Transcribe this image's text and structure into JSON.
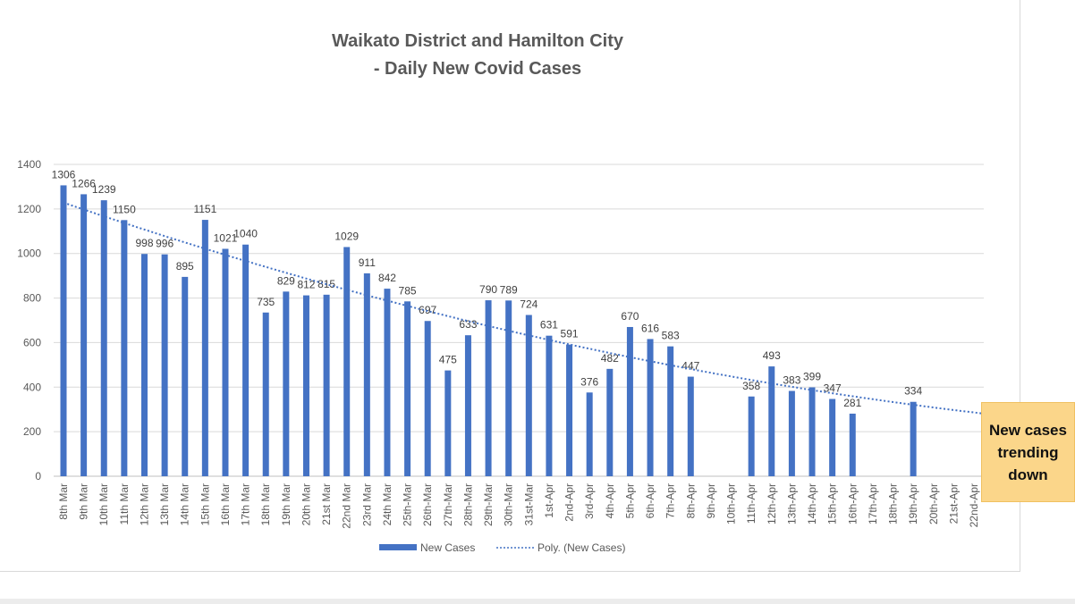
{
  "chart_data": {
    "type": "bar",
    "title": [
      "Waikato District and Hamilton City",
      "- Daily New Covid Cases"
    ],
    "xlabel": "",
    "ylabel": "",
    "ylim": [
      0,
      1400
    ],
    "yticks": [
      0,
      200,
      400,
      600,
      800,
      1000,
      1200,
      1400
    ],
    "grid": true,
    "legend_position": "bottom",
    "categories": [
      "8th Mar",
      "9th Mar",
      "10th Mar",
      "11th Mar",
      "12th Mar",
      "13th Mar",
      "14th Mar",
      "15th Mar",
      "16th Mar",
      "17th Mar",
      "18th Mar",
      "19th Mar",
      "20th Mar",
      "21st Mar",
      "22nd Mar",
      "23rd Mar",
      "24th Mar",
      "25th-Mar",
      "26th-Mar",
      "27th-Mar",
      "28th-Mar",
      "29th-Mar",
      "30th-Mar",
      "31st-Mar",
      "1st-Apr",
      "2nd-Apr",
      "3rd-Apr",
      "4th-Apr",
      "5th-Apr",
      "6th-Apr",
      "7th-Apr",
      "8th-Apr",
      "9th-Apr",
      "10th-Apr",
      "11th-Apr",
      "12th-Apr",
      "13th-Apr",
      "14th-Apr",
      "15th-Apr",
      "16th-Apr",
      "17th-Apr",
      "18th-Apr",
      "19th-Apr",
      "20th-Apr",
      "21st-Apr",
      "22nd-Apr"
    ],
    "series": [
      {
        "name": "New Cases",
        "color": "#4472c4",
        "values": [
          1306,
          1266,
          1239,
          1150,
          998,
          996,
          895,
          1151,
          1021,
          1040,
          735,
          829,
          812,
          815,
          1029,
          911,
          842,
          785,
          697,
          475,
          633,
          790,
          789,
          724,
          631,
          591,
          376,
          482,
          670,
          616,
          583,
          447,
          null,
          null,
          358,
          493,
          383,
          399,
          347,
          281,
          null,
          null,
          334,
          null,
          null,
          null
        ]
      }
    ],
    "trendline": {
      "name": "Poly. (New Cases)",
      "type": "polynomial",
      "order": 2,
      "color": "#4472c4"
    }
  },
  "callout": {
    "text": "New cases trending down",
    "color": "#fbd68a"
  }
}
